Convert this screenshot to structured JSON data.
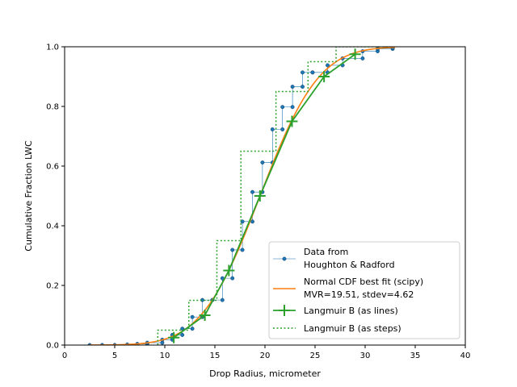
{
  "chart_data": {
    "type": "line",
    "xlabel": "Drop Radius, micrometer",
    "ylabel": "Cumulative Fraction LWC",
    "xlim": [
      0,
      40
    ],
    "ylim": [
      0,
      1.0
    ],
    "xticks": [
      "0",
      "5",
      "10",
      "15",
      "20",
      "25",
      "30",
      "35",
      "40"
    ],
    "yticks": [
      "0.0",
      "0.2",
      "0.4",
      "0.6",
      "0.8",
      "1.0"
    ],
    "grid": false,
    "legend_position": "lower-right",
    "series": [
      {
        "name": "Data from Houghton & Radford",
        "legend_lines": [
          "Data from",
          "Houghton & Radford"
        ],
        "style": "step-markers",
        "color": "#1f77b4",
        "x": [
          2.5,
          3.75,
          5.0,
          6.25,
          7.25,
          8.25,
          9.75,
          10.75,
          11.75,
          12.75,
          13.75,
          14.75,
          15.75,
          16.75,
          17.75,
          18.75,
          19.75,
          20.75,
          21.75,
          22.75,
          23.75,
          24.75,
          26.25,
          27.75,
          29.75,
          31.25,
          32.75
        ],
        "y": [
          0.0,
          0.0,
          0.0,
          0.002,
          0.004,
          0.008,
          0.018,
          0.034,
          0.055,
          0.094,
          0.151,
          0.151,
          0.224,
          0.319,
          0.414,
          0.513,
          0.612,
          0.723,
          0.798,
          0.866,
          0.914,
          0.914,
          0.938,
          0.961,
          0.985,
          0.993,
          0.997
        ]
      },
      {
        "name": "Normal CDF best fit (scipy) MVR=19.51, stdev=4.62",
        "legend_lines": [
          "Normal CDF best fit (scipy)",
          "MVR=19.51, stdev=4.62"
        ],
        "style": "line",
        "color": "#ff7f0e",
        "mean": 19.51,
        "stdev": 4.62
      },
      {
        "name": "Langmuir B (as lines)",
        "legend_lines": [
          "Langmuir B (as lines)"
        ],
        "style": "line-plus",
        "color": "#2ca02c",
        "x": [
          10.9,
          14.0,
          16.4,
          19.5,
          22.7,
          25.9,
          29.0
        ],
        "y": [
          0.025,
          0.1,
          0.25,
          0.5,
          0.75,
          0.9,
          0.975
        ]
      },
      {
        "name": "Langmuir B (as steps)",
        "legend_lines": [
          "Langmuir B (as steps)"
        ],
        "style": "steps-dotted",
        "color": "#2ca02c",
        "edges": [
          9.3,
          12.4,
          15.2,
          17.6,
          21.1,
          24.3,
          27.1,
          30.7,
          32.5
        ],
        "levels": [
          0.05,
          0.15,
          0.35,
          0.65,
          0.85,
          0.95,
          1.0,
          1.0
        ]
      }
    ]
  }
}
